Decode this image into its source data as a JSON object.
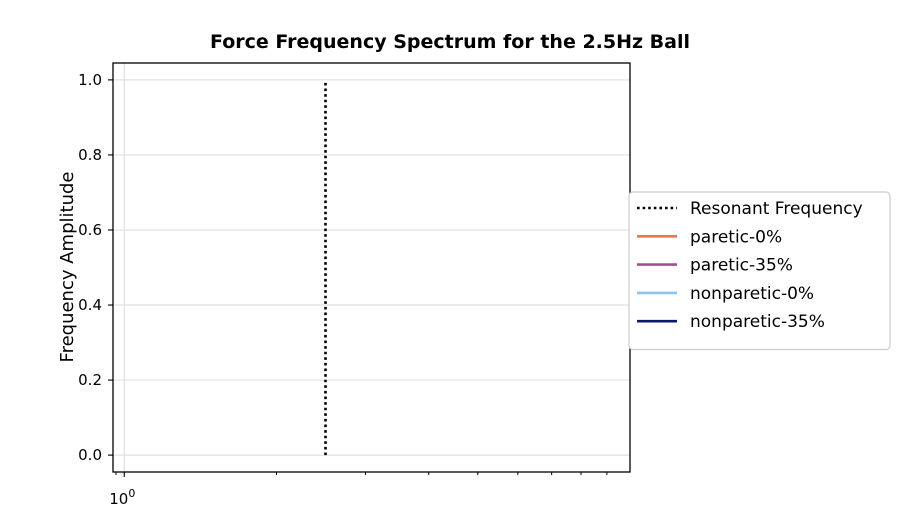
{
  "chart_data": {
    "type": "line",
    "title": "Force Frequency Spectrum for the 2.5Hz Ball",
    "xlabel": "",
    "ylabel": "Frequency Amplitude",
    "x_scale": "log",
    "xlim": [
      0.95,
      10
    ],
    "ylim": [
      -0.045,
      1.045
    ],
    "y_ticks": [
      0.0,
      0.2,
      0.4,
      0.6,
      0.8,
      1.0
    ],
    "y_tick_labels": [
      "0.0",
      "0.2",
      "0.4",
      "0.6",
      "0.8",
      "1.0"
    ],
    "x_major_ticks": [
      1
    ],
    "x_major_tick_labels": [
      "10^0"
    ],
    "x_minor_ticks": [
      2,
      3,
      4,
      5,
      6,
      7,
      8,
      9
    ],
    "grid": true,
    "legend_position": "center-right, outside plot",
    "series": [
      {
        "name": "Resonant Frequency",
        "color": "#000000",
        "style": "dotted",
        "x": [
          2.5,
          2.5
        ],
        "y": [
          0.0,
          1.0
        ]
      },
      {
        "name": "paretic-0%",
        "color": "#ee7744",
        "style": "solid",
        "x": [],
        "y": []
      },
      {
        "name": "paretic-35%",
        "color": "#a05195",
        "style": "solid",
        "x": [],
        "y": []
      },
      {
        "name": "nonparetic-0%",
        "color": "#8ec3f0",
        "style": "solid",
        "x": [],
        "y": []
      },
      {
        "name": "nonparetic-35%",
        "color": "#0d1a63",
        "style": "solid",
        "x": [],
        "y": []
      }
    ]
  }
}
